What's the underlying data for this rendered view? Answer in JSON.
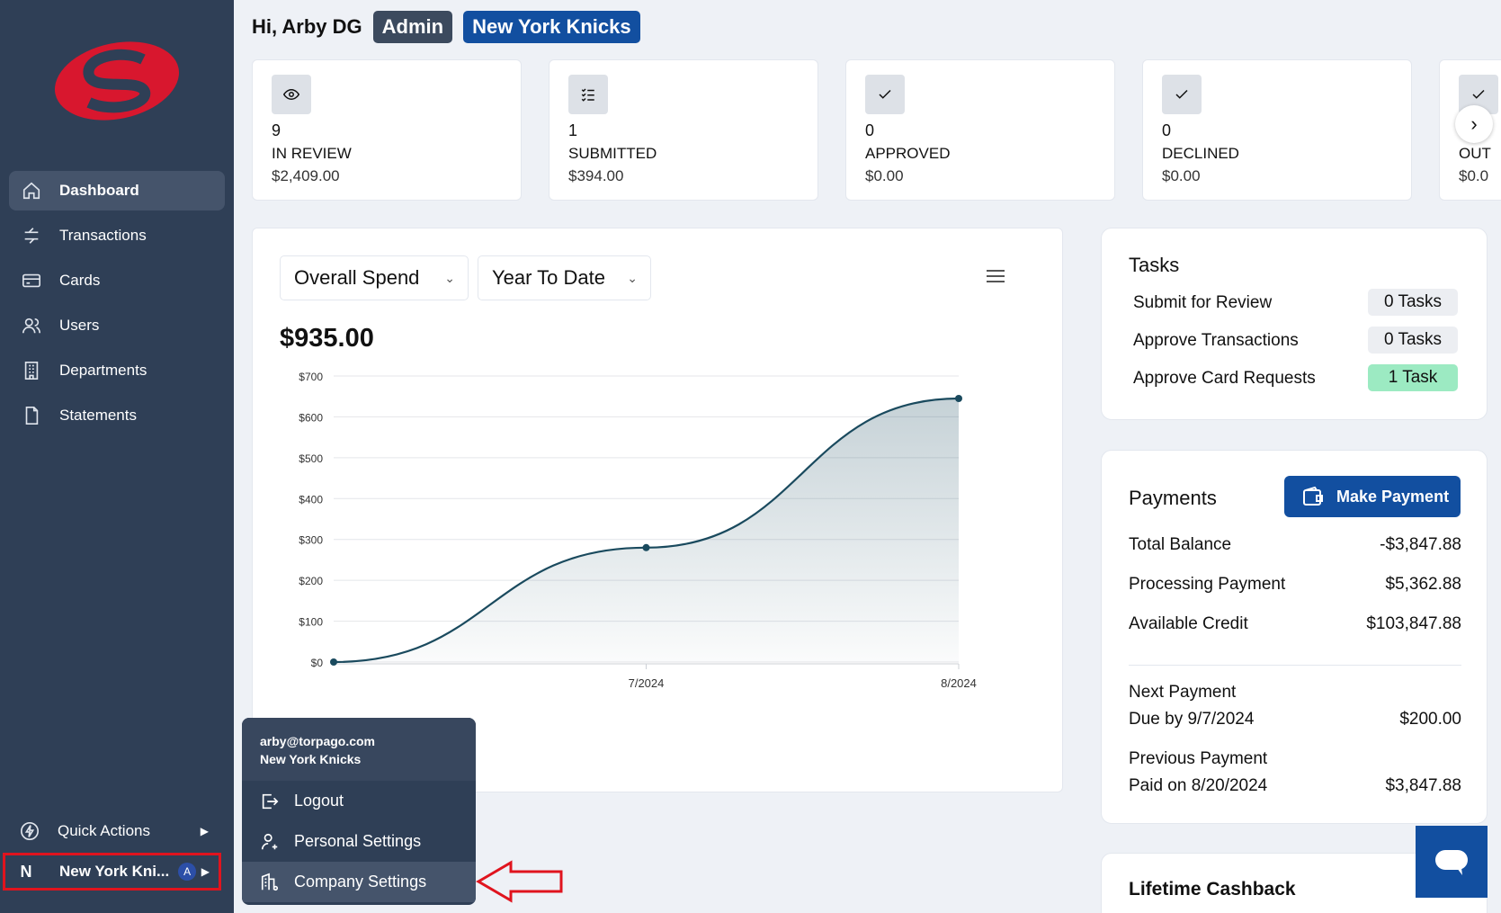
{
  "sidebar": {
    "nav": [
      {
        "label": "Dashboard",
        "icon": "home-icon",
        "active": true
      },
      {
        "label": "Transactions",
        "icon": "transfer-icon"
      },
      {
        "label": "Cards",
        "icon": "card-icon"
      },
      {
        "label": "Users",
        "icon": "users-icon"
      },
      {
        "label": "Departments",
        "icon": "building-icon"
      },
      {
        "label": "Statements",
        "icon": "document-icon"
      }
    ],
    "quick_actions": "Quick Actions",
    "org": {
      "letter": "N",
      "name": "New York Kni...",
      "badge": "A"
    }
  },
  "header": {
    "greeting": "Hi, Arby DG",
    "role": "Admin",
    "team": "New York Knicks"
  },
  "stats": [
    {
      "count": "9",
      "label": "IN REVIEW",
      "amount": "$2,409.00",
      "icon": "eye-icon"
    },
    {
      "count": "1",
      "label": "SUBMITTED",
      "amount": "$394.00",
      "icon": "checklist-icon"
    },
    {
      "count": "0",
      "label": "APPROVED",
      "amount": "$0.00",
      "icon": "check-icon"
    },
    {
      "count": "0",
      "label": "DECLINED",
      "amount": "$0.00",
      "icon": "check-icon"
    },
    {
      "count": "",
      "label": "OUT",
      "amount": "$0.0",
      "icon": "check-icon"
    }
  ],
  "chart": {
    "metric_select": "Overall Spend",
    "period_select": "Year To Date",
    "total": "$935.00"
  },
  "chart_data": {
    "type": "area",
    "x": [
      "6/2024",
      "7/2024",
      "8/2024"
    ],
    "x_tick_labels": [
      "7/2024",
      "8/2024"
    ],
    "y": [
      0,
      280,
      645
    ],
    "y_ticks": [
      "$0",
      "$100",
      "$200",
      "$300",
      "$400",
      "$500",
      "$600",
      "$700"
    ],
    "ylim": [
      0,
      700
    ],
    "grid": true,
    "color": "#1a4a5e"
  },
  "tasks": {
    "title": "Tasks",
    "rows": [
      {
        "label": "Submit for Review",
        "value": "0 Tasks"
      },
      {
        "label": "Approve Transactions",
        "value": "0 Tasks"
      },
      {
        "label": "Approve Card Requests",
        "value": "1 Task"
      }
    ]
  },
  "payments": {
    "title": "Payments",
    "button": "Make Payment",
    "rows": [
      {
        "label": "Total Balance",
        "value": "-$3,847.88"
      },
      {
        "label": "Processing Payment",
        "value": "$5,362.88"
      },
      {
        "label": "Available Credit",
        "value": "$103,847.88"
      }
    ],
    "next_label": "Next Payment",
    "next_due": "Due by 9/7/2024",
    "next_value": "$200.00",
    "prev_label": "Previous Payment",
    "prev_paid": "Paid on 8/20/2024",
    "prev_value": "$3,847.88"
  },
  "cashback": {
    "title": "Lifetime Cashback"
  },
  "popup": {
    "email": "arby@torpago.com",
    "org": "New York Knicks",
    "items": [
      "Logout",
      "Personal Settings",
      "Company Settings"
    ]
  }
}
